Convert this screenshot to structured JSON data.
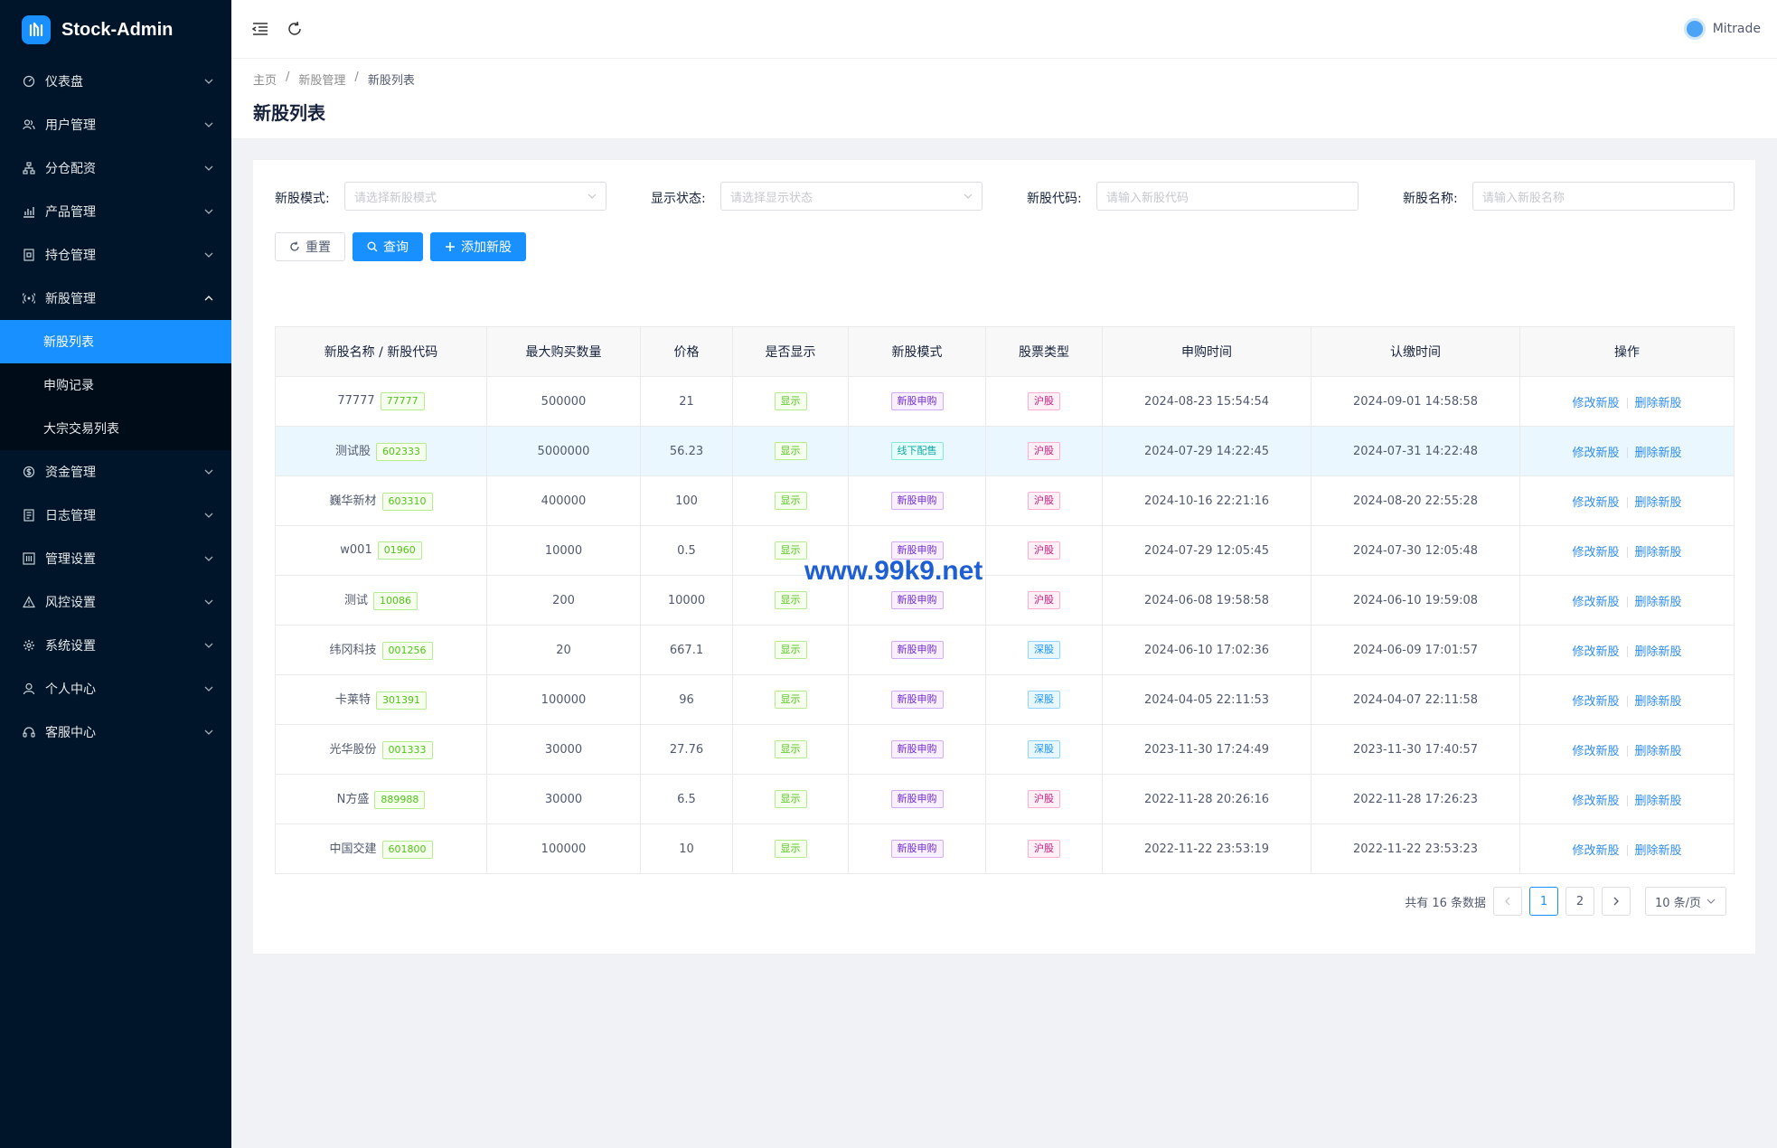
{
  "app": {
    "title": "Stock-Admin"
  },
  "sidebar": {
    "items": [
      {
        "label": "仪表盘",
        "icon": "dashboard-icon"
      },
      {
        "label": "用户管理",
        "icon": "users-icon"
      },
      {
        "label": "分仓配资",
        "icon": "sitemap-icon"
      },
      {
        "label": "产品管理",
        "icon": "chart-icon"
      },
      {
        "label": "持仓管理",
        "icon": "file-icon"
      },
      {
        "label": "新股管理",
        "icon": "broadcast-icon"
      },
      {
        "label": "资金管理",
        "icon": "money-icon"
      },
      {
        "label": "日志管理",
        "icon": "log-icon"
      },
      {
        "label": "管理设置",
        "icon": "manage-icon"
      },
      {
        "label": "风控设置",
        "icon": "warning-icon"
      },
      {
        "label": "系统设置",
        "icon": "gear-icon"
      },
      {
        "label": "个人中心",
        "icon": "user-icon"
      },
      {
        "label": "客服中心",
        "icon": "headset-icon"
      }
    ],
    "sub_items": [
      "新股列表",
      "申购记录",
      "大宗交易列表"
    ]
  },
  "header": {
    "user": "Mitrade"
  },
  "breadcrumb": [
    "主页",
    "新股管理",
    "新股列表"
  ],
  "page_title": "新股列表",
  "filters": {
    "mode_label": "新股模式:",
    "mode_placeholder": "请选择新股模式",
    "status_label": "显示状态:",
    "status_placeholder": "请选择显示状态",
    "code_label": "新股代码:",
    "code_placeholder": "请输入新股代码",
    "name_label": "新股名称:",
    "name_placeholder": "请输入新股名称"
  },
  "buttons": {
    "reset": "重置",
    "query": "查询",
    "add": "添加新股"
  },
  "table": {
    "headers": [
      "新股名称 / 新股代码",
      "最大购买数量",
      "价格",
      "是否显示",
      "新股模式",
      "股票类型",
      "申购时间",
      "认缴时间",
      "操作"
    ],
    "rows": [
      {
        "name": "77777",
        "code": "77777",
        "max": "500000",
        "price": "21",
        "show": "显示",
        "mode": "新股申购",
        "type": "沪股",
        "apply": "2024-08-23 15:54:54",
        "pay": "2024-09-01 14:58:58"
      },
      {
        "name": "测试股",
        "code": "602333",
        "max": "5000000",
        "price": "56.23",
        "show": "显示",
        "mode": "线下配售",
        "type": "沪股",
        "apply": "2024-07-29 14:22:45",
        "pay": "2024-07-31 14:22:48"
      },
      {
        "name": "巍华新材",
        "code": "603310",
        "max": "400000",
        "price": "100",
        "show": "显示",
        "mode": "新股申购",
        "type": "沪股",
        "apply": "2024-10-16 22:21:16",
        "pay": "2024-08-20 22:55:28"
      },
      {
        "name": "w001",
        "code": "01960",
        "max": "10000",
        "price": "0.5",
        "show": "显示",
        "mode": "新股申购",
        "type": "沪股",
        "apply": "2024-07-29 12:05:45",
        "pay": "2024-07-30 12:05:48"
      },
      {
        "name": "测试",
        "code": "10086",
        "max": "200",
        "price": "10000",
        "show": "显示",
        "mode": "新股申购",
        "type": "沪股",
        "apply": "2024-06-08 19:58:58",
        "pay": "2024-06-10 19:59:08"
      },
      {
        "name": "纬冈科技",
        "code": "001256",
        "max": "20",
        "price": "667.1",
        "show": "显示",
        "mode": "新股申购",
        "type": "深股",
        "apply": "2024-06-10 17:02:36",
        "pay": "2024-06-09 17:01:57"
      },
      {
        "name": "卡莱特",
        "code": "301391",
        "max": "100000",
        "price": "96",
        "show": "显示",
        "mode": "新股申购",
        "type": "深股",
        "apply": "2024-04-05 22:11:53",
        "pay": "2024-04-07 22:11:58"
      },
      {
        "name": "光华股份",
        "code": "001333",
        "max": "30000",
        "price": "27.76",
        "show": "显示",
        "mode": "新股申购",
        "type": "深股",
        "apply": "2023-11-30 17:24:49",
        "pay": "2023-11-30 17:40:57"
      },
      {
        "name": "N方盛",
        "code": "889988",
        "max": "30000",
        "price": "6.5",
        "show": "显示",
        "mode": "新股申购",
        "type": "沪股",
        "apply": "2022-11-28 20:26:16",
        "pay": "2022-11-28 17:26:23"
      },
      {
        "name": "中国交建",
        "code": "601800",
        "max": "100000",
        "price": "10",
        "show": "显示",
        "mode": "新股申购",
        "type": "沪股",
        "apply": "2022-11-22 23:53:19",
        "pay": "2022-11-22 23:53:23"
      }
    ],
    "edit_label": "修改新股",
    "delete_label": "删除新股"
  },
  "pagination": {
    "total": "共有 16 条数据",
    "pages": [
      "1",
      "2"
    ],
    "size": "10 条/页"
  },
  "watermark": "www.99k9.net",
  "colors": {
    "sidebar": "#001529",
    "primary": "#1890ff"
  }
}
